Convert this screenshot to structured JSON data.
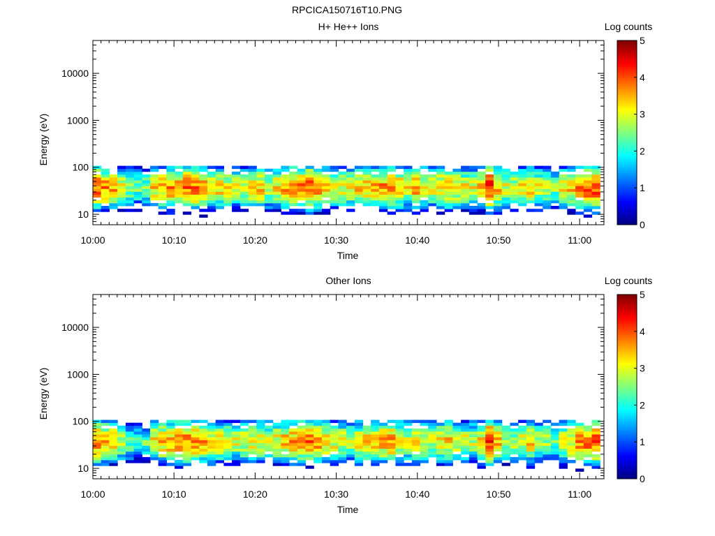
{
  "figure": {
    "title": "RPCICA150716T10.PNG"
  },
  "chart_data": [
    {
      "type": "heatmap",
      "title": "H+ He++ Ions",
      "xlabel": "Time",
      "ylabel": "Energy (eV)",
      "yscale": "log",
      "ylim": [
        6,
        50000
      ],
      "xlim": [
        "10:00",
        "11:03"
      ],
      "xticks": [
        "10:00",
        "10:10",
        "10:20",
        "10:30",
        "10:40",
        "10:50",
        "11:00"
      ],
      "yticks": [
        "10",
        "100",
        "1000",
        "10000"
      ],
      "colorbar": {
        "label": "Log counts",
        "min": 0,
        "max": 5,
        "ticks": [
          "0",
          "1",
          "2",
          "3",
          "4",
          "5"
        ]
      },
      "time_bins": 62,
      "energy_bins": [
        6.5,
        7.5,
        8.6,
        9.9,
        11.4,
        13.1,
        15.1,
        17.4,
        20,
        23,
        26.5,
        30.5,
        35,
        40.3,
        46.4,
        53.4,
        61.4,
        70.6,
        81.2,
        93.4
      ],
      "peak_log_counts": [
        3.9,
        3.6,
        3.5,
        3.0,
        2.6,
        2.4,
        2.5,
        3.3,
        3.4,
        3.6,
        3.7,
        3.8,
        3.8,
        3.7,
        3.4,
        3.3,
        3.1,
        3.0,
        3.1,
        3.2,
        3.3,
        3.0,
        3.2,
        3.5,
        3.7,
        3.8,
        3.9,
        3.7,
        3.4,
        3.2,
        3.1,
        3.0,
        3.3,
        3.5,
        3.4,
        3.6,
        3.8,
        3.4,
        3.1,
        3.6,
        3.2,
        3.0,
        3.4,
        3.5,
        3.3,
        3.1,
        3.0,
        3.3,
        4.3,
        3.5,
        3.0,
        2.9,
        3.2,
        3.4,
        3.0,
        2.8,
        2.5,
        3.2,
        3.4,
        3.7,
        3.9,
        4.1
      ]
    },
    {
      "type": "heatmap",
      "title": "Other Ions",
      "xlabel": "Time",
      "ylabel": "Energy (eV)",
      "yscale": "log",
      "ylim": [
        6,
        50000
      ],
      "xlim": [
        "10:00",
        "11:03"
      ],
      "xticks": [
        "10:00",
        "10:10",
        "10:20",
        "10:30",
        "10:40",
        "10:50",
        "11:00"
      ],
      "yticks": [
        "10",
        "100",
        "1000",
        "10000"
      ],
      "colorbar": {
        "label": "Log counts",
        "min": 0,
        "max": 5,
        "ticks": [
          "0",
          "1",
          "2",
          "3",
          "4",
          "5"
        ]
      },
      "time_bins": 62,
      "energy_bins": [
        6.5,
        7.5,
        8.6,
        9.9,
        11.4,
        13.1,
        15.1,
        17.4,
        20,
        23,
        26.5,
        30.5,
        35,
        40.3,
        46.4,
        53.4,
        61.4,
        70.6,
        81.2,
        93.4
      ],
      "peak_log_counts": [
        3.8,
        3.5,
        3.3,
        2.8,
        2.4,
        2.2,
        2.3,
        3.2,
        3.4,
        3.6,
        3.7,
        3.8,
        3.7,
        3.6,
        3.3,
        3.2,
        3.0,
        2.9,
        3.0,
        3.1,
        3.2,
        2.9,
        3.1,
        3.4,
        3.6,
        3.7,
        3.8,
        3.6,
        3.3,
        3.1,
        3.0,
        2.9,
        3.2,
        3.4,
        3.3,
        3.5,
        3.7,
        3.3,
        3.0,
        3.4,
        3.1,
        2.9,
        3.3,
        3.4,
        3.2,
        3.0,
        2.9,
        3.2,
        4.2,
        3.4,
        2.9,
        2.8,
        3.1,
        3.3,
        2.9,
        2.7,
        2.4,
        3.1,
        3.3,
        3.6,
        3.8,
        4.0
      ]
    }
  ]
}
